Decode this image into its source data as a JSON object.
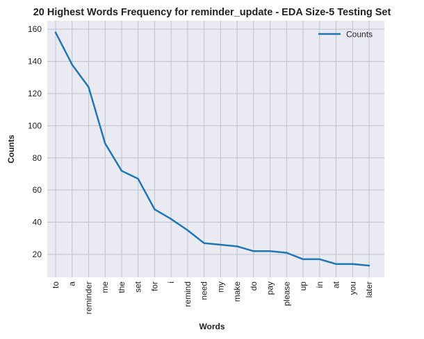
{
  "chart_data": {
    "type": "line",
    "title": "20 Highest Words Frequency for reminder_update - EDA Size-5 Testing Set",
    "xlabel": "Words",
    "ylabel": "Counts",
    "categories": [
      "to",
      "a",
      "reminder",
      "me",
      "the",
      "set",
      "for",
      "i",
      "remind",
      "need",
      "my",
      "make",
      "do",
      "pay",
      "please",
      "up",
      "in",
      "at",
      "you",
      "later"
    ],
    "series": [
      {
        "name": "Counts",
        "values": [
          158,
          138,
          124,
          89,
          72,
          67,
          48,
          42,
          35,
          27,
          26,
          25,
          22,
          22,
          21,
          17,
          17,
          14,
          14,
          13
        ],
        "color": "#1f77b4"
      }
    ],
    "yticks": [
      20,
      40,
      60,
      80,
      100,
      120,
      140,
      160
    ],
    "ylim": [
      5.75,
      165.25
    ],
    "grid": true,
    "legend": "top-right",
    "colors": {
      "plot_background": "#eaeaf2",
      "grid": "#c0c0c8",
      "line": "#1f77b4"
    }
  }
}
